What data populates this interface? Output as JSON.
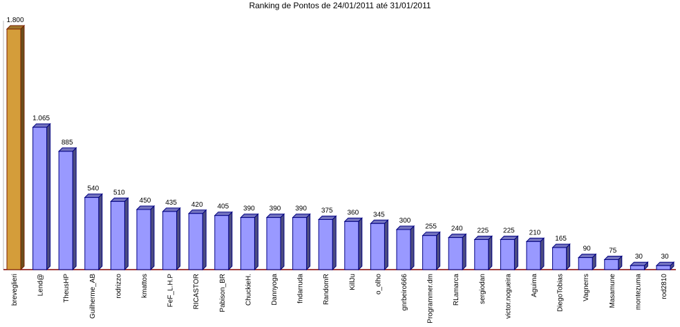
{
  "chart_data": {
    "type": "bar3d",
    "title": "Ranking de Pontos de 24/01/2011 até 31/01/2011",
    "categories": [
      "breveglieri",
      "Lend@",
      "TheusHP",
      "Guilherme_AB",
      "rodrizzo",
      "kmattos",
      "FeF_L.H.P",
      "RICASTOR",
      "Pabison_BR",
      "ChuckieH.",
      "Dannyoga",
      "fndarruda",
      "RandomR",
      "KillJu",
      "o_olho",
      "gnrbeiro666",
      "Programmer.dm",
      "RLamarca",
      "sergiodan",
      "victor.nogueira",
      "Aguima",
      "DiegoTobias",
      "Vagnerrs",
      "Masamune",
      "montezuma",
      "rod2810"
    ],
    "values": [
      1800,
      1065,
      885,
      540,
      510,
      450,
      435,
      420,
      405,
      390,
      390,
      390,
      375,
      360,
      345,
      300,
      255,
      240,
      225,
      225,
      210,
      165,
      90,
      75,
      30,
      30
    ],
    "value_labels": [
      "1.800",
      "1.065",
      "885",
      "540",
      "510",
      "450",
      "435",
      "420",
      "405",
      "390",
      "390",
      "390",
      "375",
      "360",
      "345",
      "300",
      "255",
      "240",
      "225",
      "225",
      "210",
      "165",
      "90",
      "75",
      "30",
      "30"
    ],
    "colors": [
      "#d49d3a",
      "#9999ff",
      "#9999ff",
      "#9999ff",
      "#9999ff",
      "#9999ff",
      "#9999ff",
      "#9999ff",
      "#9999ff",
      "#9999ff",
      "#9999ff",
      "#9999ff",
      "#9999ff",
      "#9999ff",
      "#9999ff",
      "#9999ff",
      "#9999ff",
      "#9999ff",
      "#9999ff",
      "#9999ff",
      "#9999ff",
      "#9999ff",
      "#9999ff",
      "#9999ff",
      "#9999ff",
      "#9999ff"
    ]
  }
}
